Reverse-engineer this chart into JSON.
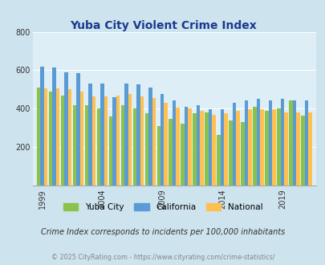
{
  "title": "Yuba City Violent Crime Index",
  "title_color": "#1a3a8f",
  "subtitle": "Crime Index corresponds to incidents per 100,000 inhabitants",
  "footer": "© 2025 CityRating.com - https://www.cityrating.com/crime-statistics/",
  "years": [
    1999,
    2000,
    2001,
    2002,
    2003,
    2004,
    2005,
    2006,
    2007,
    2008,
    2009,
    2010,
    2011,
    2012,
    2013,
    2014,
    2015,
    2016,
    2017,
    2018,
    2019,
    2020,
    2021
  ],
  "yuba_city": [
    510,
    490,
    470,
    420,
    420,
    400,
    360,
    420,
    400,
    375,
    310,
    345,
    320,
    375,
    380,
    265,
    340,
    330,
    410,
    390,
    400,
    445,
    365
  ],
  "california": [
    620,
    615,
    590,
    585,
    530,
    530,
    460,
    530,
    525,
    510,
    475,
    445,
    410,
    420,
    395,
    395,
    430,
    445,
    450,
    445,
    450,
    445,
    445
  ],
  "national": [
    505,
    505,
    500,
    490,
    465,
    465,
    470,
    475,
    465,
    455,
    430,
    405,
    400,
    390,
    368,
    375,
    390,
    395,
    395,
    395,
    380,
    380,
    380
  ],
  "bar_colors": {
    "yuba_city": "#8bc34a",
    "california": "#5b9bd5",
    "national": "#ffc050"
  },
  "bg_color": "#cde3ee",
  "plot_bg": "#ddeef6",
  "ylim": [
    0,
    800
  ],
  "yticks": [
    200,
    400,
    600,
    800
  ],
  "tick_years": [
    1999,
    2004,
    2009,
    2014,
    2019
  ],
  "legend_labels": [
    "Yuba City",
    "California",
    "National"
  ],
  "legend_colors": [
    "#8bc34a",
    "#5b9bd5",
    "#ffc050"
  ]
}
